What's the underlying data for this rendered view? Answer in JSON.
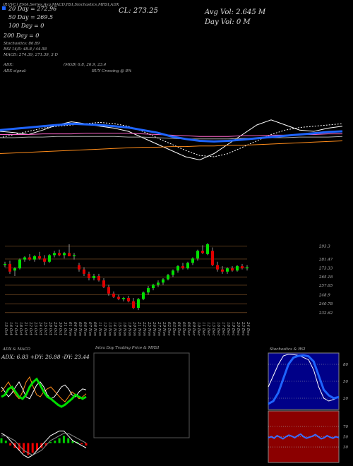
{
  "header": {
    "line1": "(RUVC) EMA,Series,Avg,MACD,RSI,Stochastics,MRSI,ADX",
    "ema": [
      "20 Day = 272.96",
      "50 Day = 269.5",
      "100 Day = 0",
      "200 Day = 0"
    ],
    "stats": [
      "Stochastics: 86.89",
      "RSI 14/5: 48.8 / 44.58",
      "MACD: 274.39, 271.39, 3 D"
    ],
    "adx": "ADX:",
    "adx_values": "(MGB) 6.8, 26.9, 23.4",
    "adx_signal": "ADX signal:",
    "signal_text": "BUY Crossing @ 8%",
    "cl": "CL: 273.25",
    "avg_vol": "Avg Vol: 2.645 M",
    "day_vol": "Day Vol: 0  M"
  },
  "intraday": {
    "title": "Intra Day Trading Price & MRSI"
  },
  "chart_data": [
    {
      "type": "candlestick",
      "up_color": "#00e000",
      "down_color": "#e00000",
      "ylim": [
        228,
        302
      ],
      "yticks": [
        293.3,
        281.47,
        273.33,
        265.18,
        257.65,
        248.9,
        240.78,
        232.62
      ],
      "categories": [
        "15 Oct",
        "16 Oct",
        "17 Oct",
        "18 Oct",
        "21 Oct",
        "22 Oct",
        "23 Oct",
        "24 Oct",
        "25 Oct",
        "28 Oct",
        "29 Oct",
        "30 Oct",
        "31 Oct",
        "01 Nov",
        "04 Nov",
        "05 Nov",
        "06 Nov",
        "07 Nov",
        "08 Nov",
        "11 Nov",
        "12 Nov",
        "13 Nov",
        "14 Nov",
        "15 Nov",
        "18 Nov",
        "19 Nov",
        "20 Nov",
        "21 Nov",
        "22 Nov",
        "25 Nov",
        "26 Nov",
        "27 Nov",
        "29 Nov",
        "02 Dec",
        "03 Dec",
        "04 Dec",
        "05 Dec",
        "06 Dec",
        "09 Dec",
        "10 Dec",
        "11 Dec",
        "12 Dec",
        "13 Dec",
        "16 Dec",
        "17 Dec",
        "18 Dec",
        "19 Dec",
        "20 Dec",
        "23 Dec",
        "24 Dec"
      ],
      "ohlc": [
        [
          276,
          279,
          274,
          277
        ],
        [
          277,
          280,
          268,
          270
        ],
        [
          271,
          274,
          266,
          273
        ],
        [
          273,
          282,
          272,
          281
        ],
        [
          281,
          284,
          279,
          283
        ],
        [
          283,
          286,
          280,
          281
        ],
        [
          281,
          285,
          279,
          284
        ],
        [
          284,
          288,
          281,
          282
        ],
        [
          282,
          285,
          276,
          279
        ],
        [
          279,
          286,
          278,
          285
        ],
        [
          285,
          289,
          283,
          287
        ],
        [
          287,
          290,
          284,
          285
        ],
        [
          285,
          288,
          282,
          287
        ],
        [
          287,
          295,
          284,
          284
        ],
        [
          284,
          287,
          281,
          285
        ],
        [
          276,
          278,
          270,
          272
        ],
        [
          272,
          274,
          266,
          268
        ],
        [
          268,
          270,
          262,
          264
        ],
        [
          264,
          268,
          262,
          266
        ],
        [
          266,
          268,
          261,
          262
        ],
        [
          262,
          264,
          255,
          256
        ],
        [
          256,
          258,
          248,
          250
        ],
        [
          250,
          252,
          246,
          247
        ],
        [
          247,
          249,
          244,
          245
        ],
        [
          245,
          247,
          243,
          246
        ],
        [
          246,
          248,
          242,
          243
        ],
        [
          243,
          246,
          236,
          237
        ],
        [
          237,
          246,
          235,
          245
        ],
        [
          245,
          252,
          244,
          251
        ],
        [
          251,
          257,
          249,
          255
        ],
        [
          255,
          259,
          253,
          258
        ],
        [
          258,
          262,
          256,
          260
        ],
        [
          260,
          264,
          258,
          263
        ],
        [
          263,
          268,
          262,
          267
        ],
        [
          267,
          272,
          265,
          271
        ],
        [
          271,
          276,
          269,
          275
        ],
        [
          275,
          278,
          272,
          273
        ],
        [
          273,
          279,
          272,
          278
        ],
        [
          278,
          283,
          276,
          282
        ],
        [
          282,
          290,
          280,
          289
        ],
        [
          289,
          294,
          286,
          287
        ],
        [
          286,
          296,
          285,
          295
        ],
        [
          289,
          292,
          275,
          276
        ],
        [
          276,
          279,
          270,
          272
        ],
        [
          272,
          275,
          268,
          270
        ],
        [
          270,
          274,
          268,
          273
        ],
        [
          273,
          275,
          270,
          271
        ],
        [
          271,
          276,
          270,
          275
        ],
        [
          275,
          277,
          272,
          273
        ],
        [
          273,
          276,
          271,
          274
        ]
      ]
    },
    {
      "type": "line",
      "ylim": [
        0,
        100
      ],
      "series": [
        {
          "color": "#ffffff",
          "values": [
            60,
            58,
            55,
            62,
            70,
            75,
            72,
            68,
            65,
            60,
            50,
            40,
            30,
            20,
            15,
            25,
            40,
            55,
            70,
            78,
            70,
            62,
            60,
            65,
            68
          ]
        },
        {
          "color": "#ffffff",
          "dashed": true,
          "values": [
            50,
            55,
            60,
            65,
            68,
            70,
            72,
            74,
            72,
            68,
            60,
            50,
            40,
            30,
            22,
            20,
            25,
            35,
            45,
            55,
            62,
            66,
            68,
            70,
            72
          ]
        },
        {
          "color": "#aaaaaa",
          "values": [
            50,
            50,
            51,
            51,
            52,
            52,
            52,
            52,
            52,
            51,
            51,
            50,
            49,
            48,
            48,
            48,
            48,
            49,
            49,
            50,
            50,
            51,
            51,
            51,
            52
          ]
        },
        {
          "color": "#ff66cc",
          "values": [
            55,
            55,
            55,
            56,
            56,
            56,
            57,
            57,
            57,
            57,
            56,
            55,
            54,
            53,
            52,
            52,
            52,
            53,
            53,
            54,
            54,
            55,
            55,
            56,
            56
          ]
        },
        {
          "color": "#ff8c1a",
          "values": [
            25,
            26,
            27,
            28,
            29,
            30,
            31,
            32,
            33,
            34,
            35,
            35,
            36,
            36,
            37,
            37,
            38,
            38,
            39,
            40,
            41,
            42,
            43,
            44,
            45
          ]
        },
        {
          "color": "#1e64ff",
          "width": 3,
          "values": [
            62,
            64,
            66,
            68,
            70,
            72,
            71,
            70,
            68,
            66,
            62,
            58,
            52,
            48,
            45,
            44,
            45,
            47,
            49,
            51,
            53,
            55,
            57,
            59,
            60
          ]
        }
      ]
    },
    {
      "type": "line",
      "title": "ADX  & MACD",
      "subtitle": "ADX: 6.83  +DY: 26.88  -DY: 23.44",
      "ylim": [
        0,
        50
      ],
      "series": [
        {
          "color": "#ff8c1a",
          "values": [
            25,
            30,
            35,
            28,
            22,
            18,
            25,
            35,
            40,
            30,
            22,
            20,
            25,
            28,
            30,
            26,
            22,
            18,
            15,
            20,
            25,
            22,
            18,
            20,
            23
          ]
        },
        {
          "color": "#ffffff",
          "values": [
            30,
            25,
            20,
            24,
            30,
            35,
            28,
            20,
            18,
            25,
            32,
            35,
            30,
            22,
            18,
            20,
            25,
            30,
            32,
            28,
            22,
            20,
            25,
            28,
            27
          ]
        },
        {
          "color": "#00dd00",
          "width": 3,
          "values": [
            20,
            22,
            28,
            30,
            25,
            20,
            18,
            22,
            30,
            35,
            38,
            32,
            25,
            20,
            18,
            15,
            12,
            10,
            12,
            15,
            18,
            22,
            20,
            18,
            20
          ]
        }
      ]
    },
    {
      "type": "macd",
      "ylim": [
        -8,
        8
      ],
      "positive_color": "#00cc00",
      "negative_color": "#ee0000",
      "histogram": [
        2,
        1,
        -1,
        -2,
        -3,
        -4,
        -5,
        -4,
        -3,
        -2,
        -1,
        0.5,
        1,
        2,
        3,
        2,
        1,
        0.5,
        -0.5,
        -1
      ],
      "series": [
        {
          "color": "#ffffff",
          "values": [
            4,
            3,
            1,
            -1,
            -3,
            -5,
            -6,
            -5,
            -3,
            -1,
            1,
            3,
            4,
            5,
            5,
            3,
            1,
            0,
            -1,
            -2
          ]
        },
        {
          "color": "#888888",
          "values": [
            3,
            3,
            2,
            1,
            -1,
            -3,
            -4,
            -5,
            -4,
            -3,
            -1,
            1,
            2,
            3,
            4,
            4,
            3,
            2,
            1,
            0
          ]
        }
      ]
    },
    {
      "type": "line",
      "title": "Stochastics & RSI",
      "background": "#000088",
      "ylim": [
        0,
        100
      ],
      "yticks": [
        80,
        50,
        20
      ],
      "series": [
        {
          "color": "#ffffff",
          "values": [
            40,
            60,
            80,
            95,
            98,
            97,
            96,
            92,
            88,
            70,
            40,
            20,
            15,
            18,
            22
          ]
        },
        {
          "color": "#1e64ff",
          "width": 3,
          "values": [
            10,
            15,
            30,
            55,
            80,
            92,
            95,
            96,
            94,
            85,
            60,
            35,
            25,
            20,
            22
          ]
        }
      ]
    },
    {
      "type": "line",
      "background": "#8b0000",
      "ylim": [
        0,
        100
      ],
      "yticks": [
        70,
        50,
        30
      ],
      "series": [
        {
          "color": "#3a6cff",
          "width": 2,
          "values": [
            48,
            50,
            47,
            52,
            49,
            46,
            50,
            53,
            51,
            48,
            52,
            55,
            50,
            47,
            49,
            51,
            54,
            50,
            46,
            48,
            52,
            49,
            47,
            50,
            48
          ]
        }
      ]
    }
  ]
}
